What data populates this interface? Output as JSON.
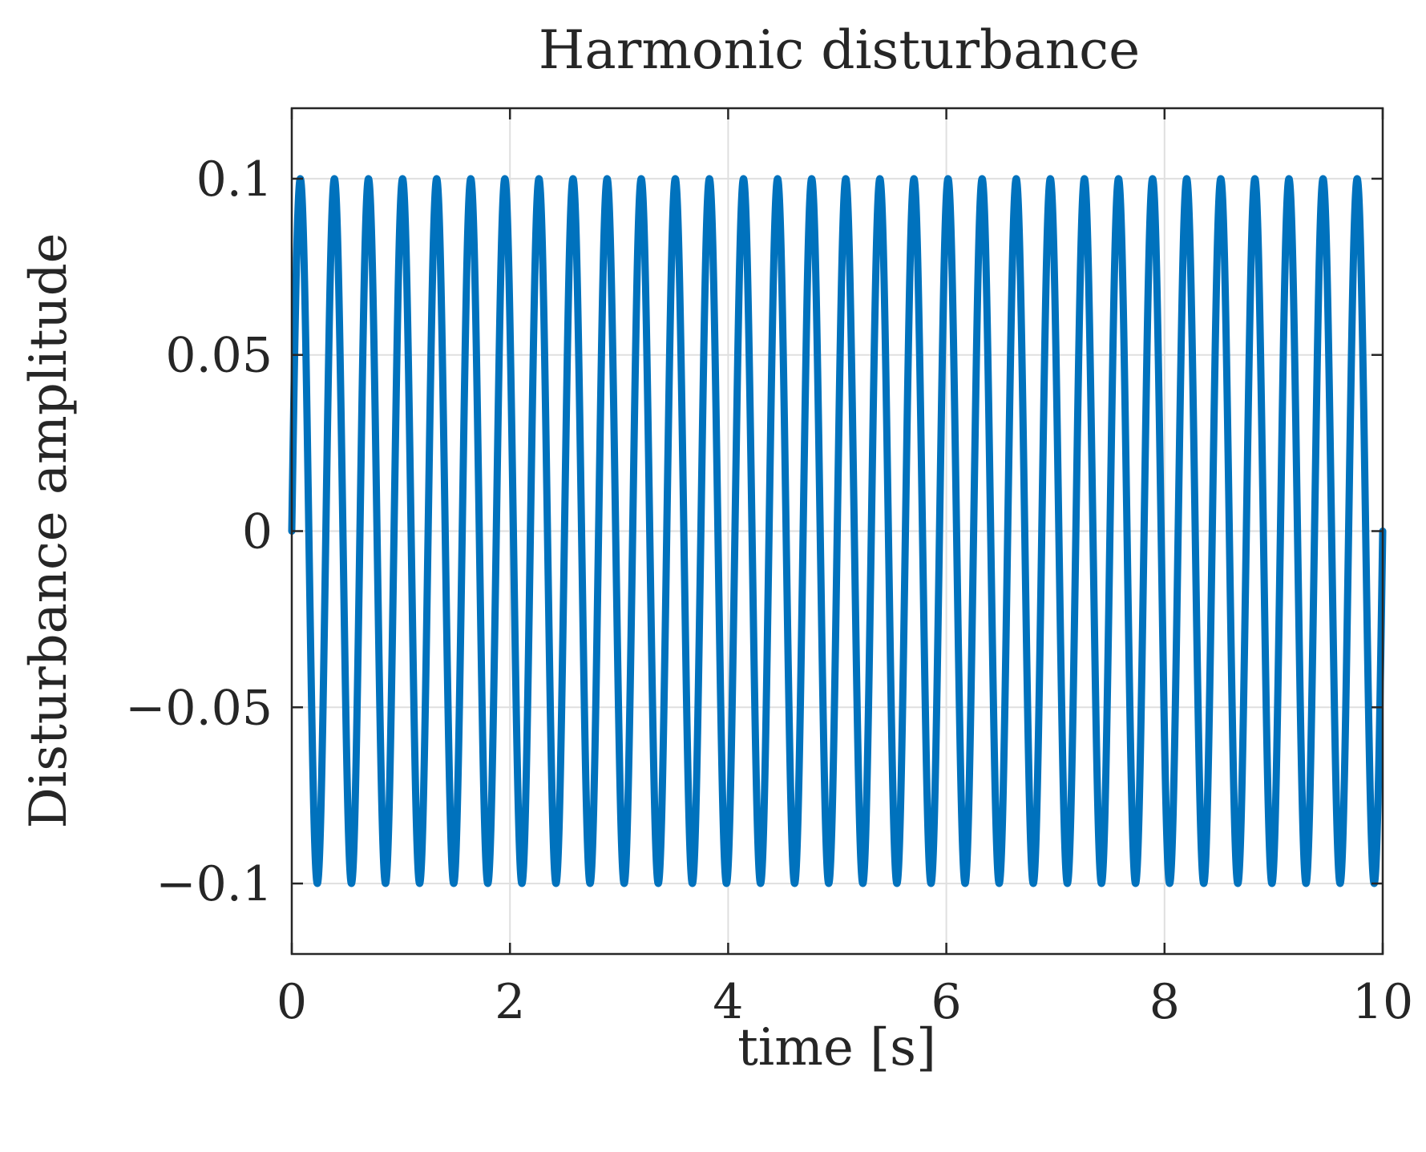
{
  "chart_data": {
    "type": "line",
    "title": "Harmonic disturbance",
    "xlabel": "time [s]",
    "ylabel": "Disturbance amplitude",
    "xlim": [
      0,
      10
    ],
    "ylim": [
      -0.12,
      0.12
    ],
    "xticks": [
      0,
      2,
      4,
      6,
      8,
      10
    ],
    "xtick_labels": [
      "0",
      "2",
      "4",
      "6",
      "8",
      "10"
    ],
    "yticks": [
      -0.1,
      -0.05,
      0,
      0.05,
      0.1
    ],
    "ytick_labels": [
      "−0.1",
      "−0.05",
      "0",
      "0.05",
      "0.1"
    ],
    "grid": true,
    "series": [
      {
        "color": "#0072BD",
        "function": "sine",
        "amplitude": 0.1,
        "frequency_hz": 3.2,
        "phase": 0,
        "x_start": 0,
        "x_end": 10
      }
    ]
  },
  "colors": {
    "line": "#0072BD",
    "grid": "#dfdfdf",
    "axes": "#262626"
  }
}
